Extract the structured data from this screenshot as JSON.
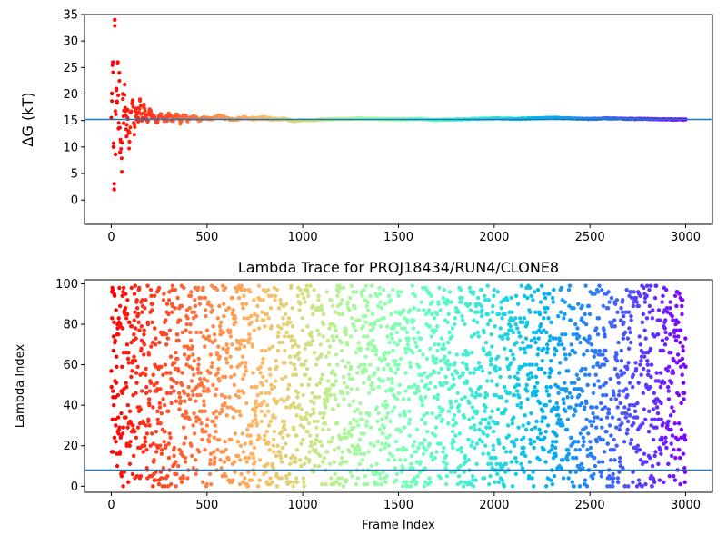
{
  "chart_data": [
    {
      "type": "scatter",
      "title": "",
      "xlabel": "",
      "ylabel": "ΔG (kT)",
      "xlim": [
        -140,
        3140
      ],
      "ylim": [
        -4.6,
        35
      ],
      "xticks": [
        0,
        500,
        1000,
        1500,
        2000,
        2500,
        3000
      ],
      "yticks": [
        0,
        5,
        10,
        15,
        20,
        25,
        30,
        35
      ],
      "hline": 15.2,
      "hline_color": "#1f77b4",
      "colormap": "rainbow",
      "series": [
        {
          "values_description_only": "",
          "x": [
            3,
            8,
            12,
            15,
            18,
            22,
            26,
            30,
            34,
            38,
            42,
            46,
            50,
            55,
            60,
            65,
            70,
            75,
            80,
            85,
            90,
            95,
            100,
            110,
            120,
            130,
            140,
            150,
            160,
            170,
            180,
            190,
            200,
            220,
            240,
            260,
            280,
            300,
            320,
            340,
            360,
            380,
            400,
            430,
            460,
            490,
            520,
            560,
            600,
            650,
            700,
            750,
            800,
            850,
            900,
            950,
            1000,
            1050,
            1100,
            1200,
            1300,
            1400,
            1500,
            1600,
            1700,
            1800,
            1900,
            2000,
            2100,
            2200,
            2300,
            2400,
            2500,
            2600,
            2700,
            2800,
            2900,
            3000
          ],
          "y": [
            20.1,
            26,
            10,
            2,
            34,
            8.6,
            21,
            18.6,
            26,
            13.5,
            24,
            9,
            11,
            5.3,
            20,
            14.5,
            21.8,
            16,
            12,
            17,
            13,
            11,
            16.5,
            18.5,
            14.3,
            17.2,
            15.5,
            19,
            15,
            17.8,
            16,
            14.8,
            16.8,
            15.5,
            14.6,
            16.2,
            15.1,
            15.8,
            15.3,
            16,
            14.9,
            15.6,
            15.3,
            15.7,
            15.1,
            15.5,
            15.2,
            15.9,
            15.4,
            15.2,
            15.6,
            15.3,
            15.5,
            15.2,
            15.4,
            14.9,
            15.1,
            15,
            15.2,
            15.3,
            15.4,
            15.3,
            15.2,
            15.3,
            15.1,
            15.2,
            15.3,
            15.4,
            15.3,
            15.4,
            15.5,
            15.4,
            15.3,
            15.4,
            15.3,
            15.3,
            15.2,
            15.2
          ]
        }
      ]
    },
    {
      "type": "scatter",
      "title": "Lambda Trace for PROJ18434/RUN4/CLONE8",
      "xlabel": "Frame Index",
      "ylabel": "Lambda Index",
      "xlim": [
        -140,
        3140
      ],
      "ylim": [
        -3,
        102
      ],
      "xticks": [
        0,
        500,
        1000,
        1500,
        2000,
        2500,
        3000
      ],
      "yticks": [
        0,
        20,
        40,
        60,
        80,
        100
      ],
      "hline": 8,
      "hline_color": "#1f77b4",
      "colormap": "rainbow",
      "frames": [
        0,
        3000
      ],
      "lambda_range": [
        0,
        99
      ]
    }
  ]
}
